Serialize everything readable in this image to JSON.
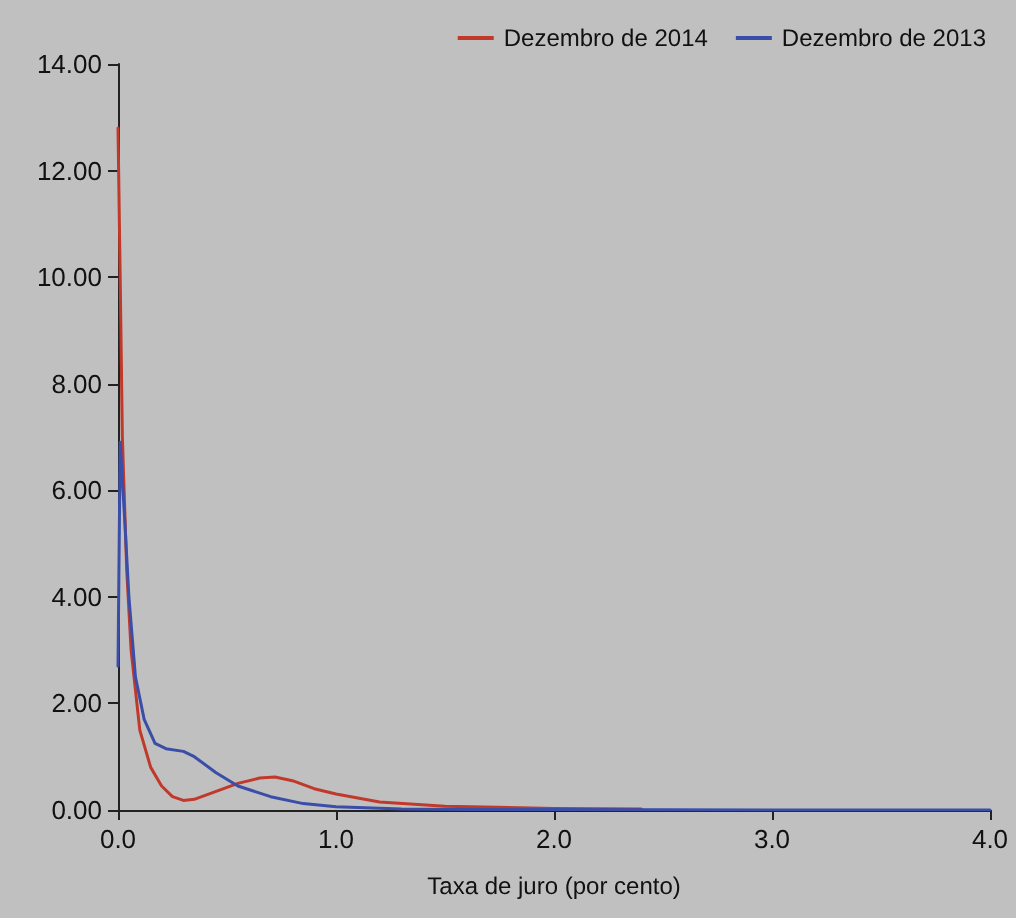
{
  "chart_data": {
    "type": "line",
    "xlabel": "Taxa de juro (por cento)",
    "xlim": [
      0,
      4
    ],
    "xticks": [
      {
        "value": 0,
        "label": "0.0"
      },
      {
        "value": 1,
        "label": "1.0"
      },
      {
        "value": 2,
        "label": "2.0"
      },
      {
        "value": 3,
        "label": "3.0"
      },
      {
        "value": 4,
        "label": "4.0"
      }
    ],
    "ylim": [
      0,
      14
    ],
    "yticks": [
      {
        "value": 0,
        "label": "0.00"
      },
      {
        "value": 2,
        "label": "2.00"
      },
      {
        "value": 4,
        "label": "4.00"
      },
      {
        "value": 6,
        "label": "6.00"
      },
      {
        "value": 8,
        "label": "8.00"
      },
      {
        "value": 10,
        "label": "10.00"
      },
      {
        "value": 12,
        "label": "12.00"
      },
      {
        "value": 14,
        "label": "14.00"
      }
    ],
    "grid": false,
    "legend": "top right",
    "marker": "none",
    "line_style": "solid",
    "series": [
      {
        "name": "Dezembro de 2014",
        "color": "#c0392b",
        "x": [
          0,
          0.01,
          0.02,
          0.04,
          0.06,
          0.1,
          0.15,
          0.2,
          0.25,
          0.3,
          0.35,
          0.45,
          0.55,
          0.65,
          0.72,
          0.8,
          0.9,
          1.0,
          1.2,
          1.5,
          2.0,
          2.4
        ],
        "values": [
          12.8,
          10,
          7,
          4.5,
          3.0,
          1.5,
          0.8,
          0.45,
          0.25,
          0.18,
          0.2,
          0.35,
          0.5,
          0.6,
          0.62,
          0.55,
          0.4,
          0.3,
          0.15,
          0.07,
          0.03,
          0.02
        ]
      },
      {
        "name": "Dezembro de 2013",
        "color": "#3a4ea8",
        "x": [
          0,
          0.01,
          0.03,
          0.05,
          0.08,
          0.12,
          0.17,
          0.22,
          0.3,
          0.35,
          0.45,
          0.55,
          0.7,
          0.85,
          1.0,
          1.3,
          1.6,
          2.0,
          3.0,
          4.0
        ],
        "values": [
          2.7,
          6.9,
          5.5,
          4.0,
          2.5,
          1.7,
          1.25,
          1.15,
          1.1,
          1.0,
          0.7,
          0.45,
          0.25,
          0.12,
          0.06,
          0.02,
          0.01,
          0.01,
          0,
          0
        ]
      }
    ]
  }
}
